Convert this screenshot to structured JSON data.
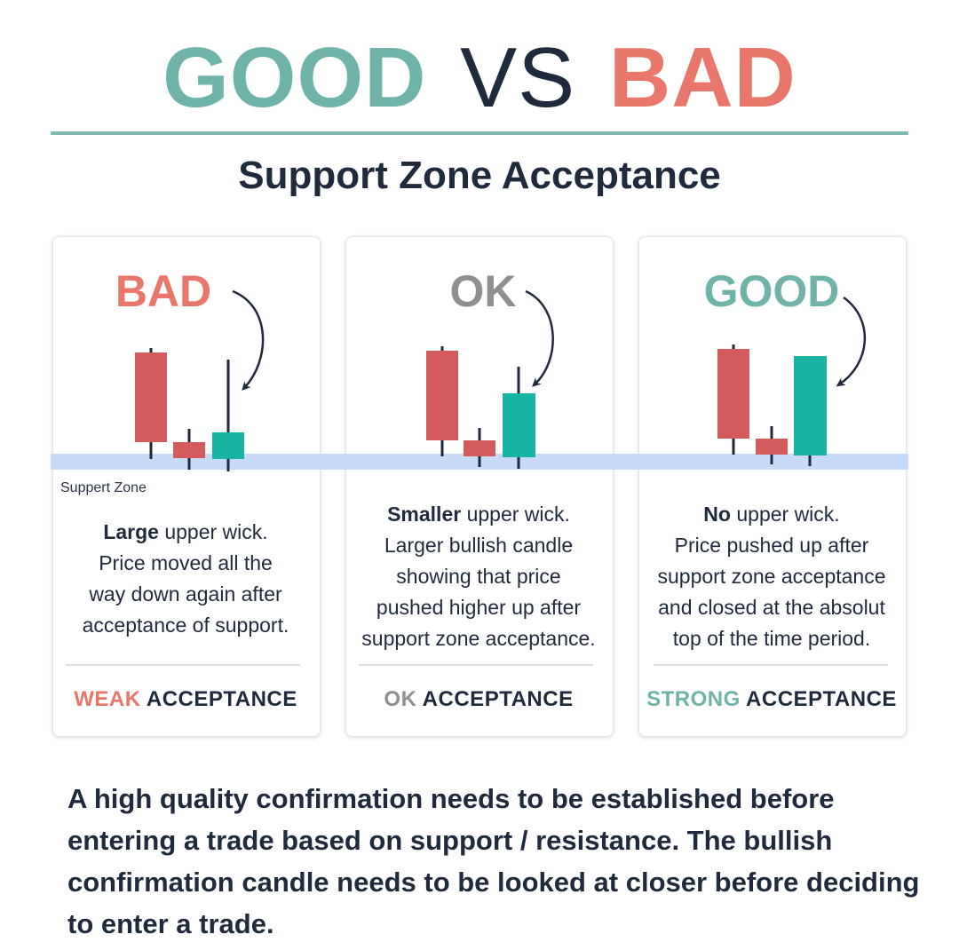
{
  "title": {
    "good": "GOOD",
    "vs": "VS",
    "bad": "BAD"
  },
  "subtitle": "Support Zone Acceptance",
  "zone_label": "Suppert Zone",
  "cards": [
    {
      "grade": "BAD",
      "desc_bold": "Large",
      "desc_rest": " upper wick.",
      "desc_lines": [
        "Price moved all the",
        "way down again after",
        "acceptance of support."
      ],
      "verdict_word": "WEAK",
      "verdict_rest": " ACCEPTANCE"
    },
    {
      "grade": "OK",
      "desc_bold": "Smaller",
      "desc_rest": " upper wick.",
      "desc_lines": [
        "Larger bullish candle",
        "showing that price",
        "pushed higher up after",
        "support zone acceptance."
      ],
      "verdict_word": "OK",
      "verdict_rest": " ACCEPTANCE"
    },
    {
      "grade": "GOOD",
      "desc_bold": "No",
      "desc_rest": " upper wick.",
      "desc_lines": [
        "Price pushed up after",
        "support zone acceptance",
        "and closed at the absolut",
        "top of the time period."
      ],
      "verdict_word": "STRONG",
      "verdict_rest": " ACCEPTANCE"
    }
  ],
  "footer": "A high quality confirmation needs to be established before entering a trade based on support / resistance. The bullish confirmation candle needs to be looked at closer before deciding to enter a trade.",
  "colors": {
    "bearish": "#d35b5b",
    "bullish": "#17b3a3",
    "zone": "#c8dbf6",
    "good": "#6fb3a9",
    "bad": "#e8766a",
    "ok": "#8f8f8f",
    "text": "#1f2a3c"
  }
}
